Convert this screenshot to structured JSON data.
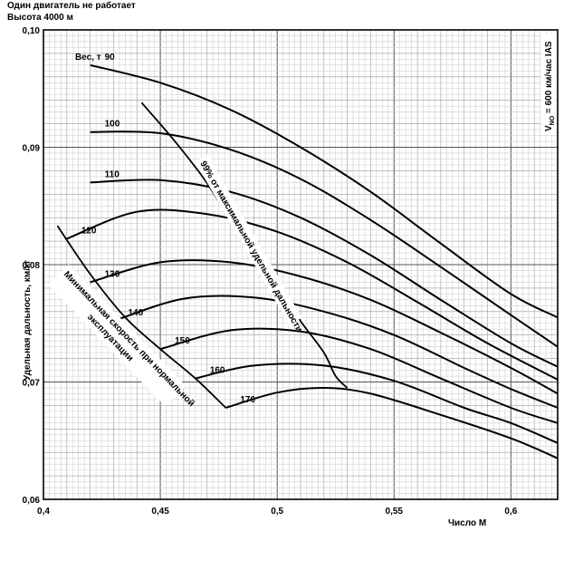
{
  "header": {
    "line1": "Один двигатель не работает",
    "line2": "Высота 4000 м"
  },
  "chart_data": {
    "type": "line",
    "xlabel": "Число М",
    "ylabel": "Удельная дальность, км/кг",
    "xlim": [
      0.4,
      0.62
    ],
    "ylim": [
      0.06,
      0.1
    ],
    "x_ticks": [
      "0,4",
      "0,45",
      "0,5",
      "0,55",
      "0,6"
    ],
    "x_tick_values": [
      0.4,
      0.45,
      0.5,
      0.55,
      0.6
    ],
    "y_ticks": [
      "0,06",
      "0,07",
      "0,08",
      "0,09",
      "0,10"
    ],
    "y_tick_values": [
      0.06,
      0.07,
      0.08,
      0.09,
      0.1
    ],
    "grid": true,
    "weight_label_prefix": "Вес, т",
    "series": [
      {
        "name": "90",
        "x": [
          0.42,
          0.45,
          0.48,
          0.51,
          0.54,
          0.57,
          0.6,
          0.62
        ],
        "y": [
          0.097,
          0.0955,
          0.0932,
          0.09,
          0.0862,
          0.0818,
          0.0775,
          0.0755
        ]
      },
      {
        "name": "100",
        "x": [
          0.42,
          0.45,
          0.48,
          0.51,
          0.54,
          0.57,
          0.6,
          0.62
        ],
        "y": [
          0.0913,
          0.0912,
          0.0898,
          0.0873,
          0.0838,
          0.0798,
          0.0757,
          0.073
        ]
      },
      {
        "name": "110",
        "x": [
          0.42,
          0.45,
          0.48,
          0.51,
          0.54,
          0.57,
          0.6,
          0.62
        ],
        "y": [
          0.087,
          0.0872,
          0.0862,
          0.084,
          0.0808,
          0.077,
          0.0733,
          0.0713
        ]
      },
      {
        "name": "120",
        "x": [
          0.41,
          0.44,
          0.47,
          0.5,
          0.53,
          0.56,
          0.59,
          0.62
        ],
        "y": [
          0.0822,
          0.0845,
          0.0843,
          0.0828,
          0.0802,
          0.0768,
          0.0733,
          0.0702
        ]
      },
      {
        "name": "130",
        "x": [
          0.42,
          0.45,
          0.48,
          0.51,
          0.54,
          0.57,
          0.6,
          0.62
        ],
        "y": [
          0.0785,
          0.0802,
          0.0802,
          0.079,
          0.077,
          0.0742,
          0.0712,
          0.069
        ]
      },
      {
        "name": "140",
        "x": [
          0.43,
          0.46,
          0.49,
          0.52,
          0.55,
          0.58,
          0.6,
          0.62
        ],
        "y": [
          0.0752,
          0.0771,
          0.0772,
          0.076,
          0.074,
          0.0712,
          0.0694,
          0.0678
        ]
      },
      {
        "name": "150",
        "x": [
          0.45,
          0.48,
          0.51,
          0.54,
          0.57,
          0.6,
          0.62
        ],
        "y": [
          0.0728,
          0.0744,
          0.0743,
          0.0728,
          0.0703,
          0.0678,
          0.0665
        ]
      },
      {
        "name": "160",
        "x": [
          0.465,
          0.49,
          0.52,
          0.55,
          0.58,
          0.6,
          0.62
        ],
        "y": [
          0.0703,
          0.0714,
          0.0714,
          0.0701,
          0.0678,
          0.0665,
          0.0648
        ]
      },
      {
        "name": "170",
        "x": [
          0.478,
          0.5,
          0.52,
          0.54,
          0.57,
          0.6,
          0.62
        ],
        "y": [
          0.0678,
          0.0691,
          0.0695,
          0.069,
          0.0672,
          0.0652,
          0.0635
        ]
      }
    ],
    "boundaries": [
      {
        "name": "Минимальная скорость при нормальной эксплуатации",
        "x": [
          0.406,
          0.42,
          0.435,
          0.45,
          0.465,
          0.478
        ],
        "y": [
          0.0833,
          0.0792,
          0.0755,
          0.0728,
          0.0703,
          0.0678
        ]
      },
      {
        "name": "99% от максимальной удельной дальности",
        "x": [
          0.442,
          0.455,
          0.468,
          0.478,
          0.49,
          0.5,
          0.51,
          0.52,
          0.525,
          0.53
        ],
        "y": [
          0.0938,
          0.0908,
          0.0875,
          0.0845,
          0.0812,
          0.0783,
          0.0752,
          0.0725,
          0.0705,
          0.0695
        ]
      }
    ],
    "annotations": {
      "speed_condition": "V",
      "speed_condition_sub": "NO",
      "speed_condition_rest": " = 600 км/час IAS"
    }
  }
}
